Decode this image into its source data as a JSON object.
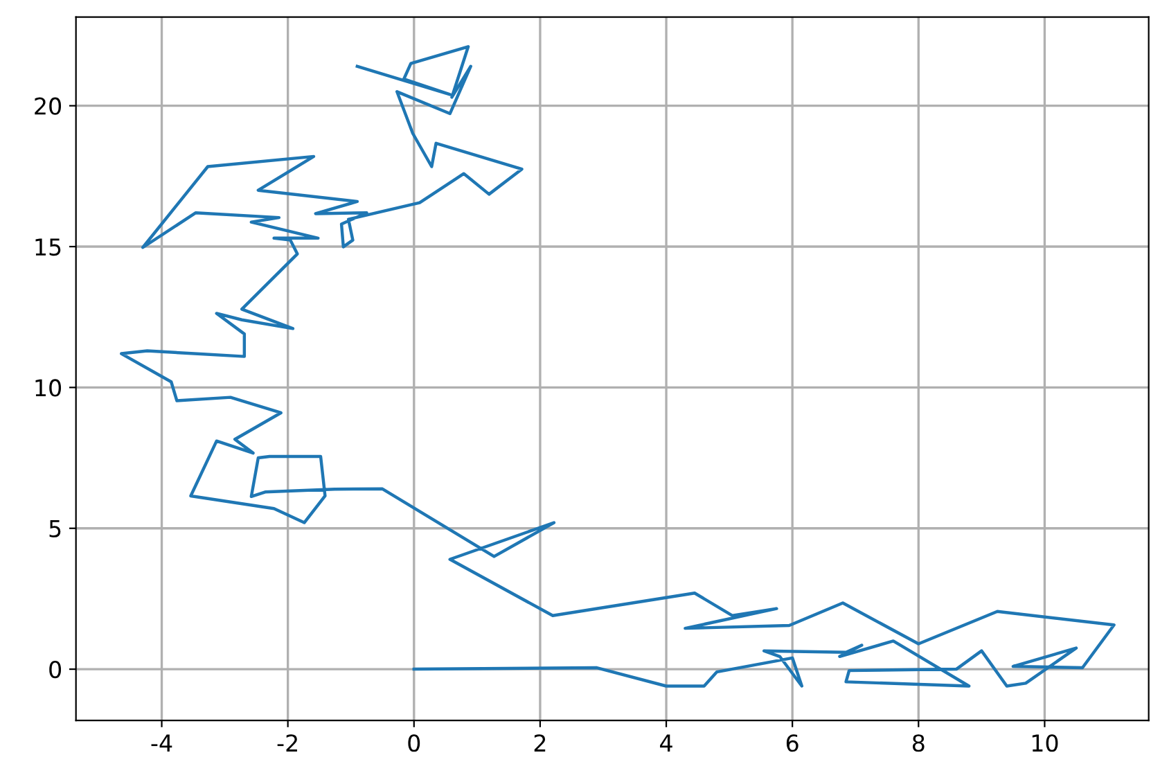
{
  "chart_data": {
    "type": "line",
    "x": [
      0,
      2.9,
      4,
      4.6,
      4.8,
      6.0,
      6.15,
      5.8,
      5.55,
      6.85,
      7.1,
      6.75,
      7.6,
      8.8,
      6.85,
      6.9,
      8.6,
      9.0,
      9.4,
      9.7,
      10.5,
      9.5,
      10.6,
      11.1,
      9.25,
      8.0,
      6.8,
      5.95,
      4.3,
      5.75,
      5.05,
      4.45,
      2.2,
      0.57,
      2.22,
      1.27,
      -0.5,
      -1.26,
      -2.36,
      -2.58,
      -2.47,
      -2.29,
      -1.48,
      -1.41,
      -1.74,
      -2.22,
      -3.54,
      -3.13,
      -2.55,
      -2.84,
      -2.11,
      -2.91,
      -3.76,
      -3.85,
      -4.64,
      -4.23,
      -2.69,
      -2.69,
      -3.13,
      -2.73,
      -1.92,
      -2.73,
      -1.85,
      -1.96,
      -2.22,
      -1.52,
      -2.58,
      -2.14,
      -3.46,
      -4.3,
      -3.27,
      -1.59,
      -2.47,
      -0.9,
      -1.56,
      -0.75,
      -1.15,
      -1.12,
      -0.97,
      -1.04,
      0.09,
      0.79,
      1.19,
      1.71,
      0.35,
      0.28,
      -0.02,
      -0.27,
      0.57,
      0.9,
      0.6,
      0.86,
      -0.05,
      -0.16,
      0.57,
      -0.9
    ],
    "series": [
      {
        "color": "#1f77b4",
        "values": [
          0,
          0.05,
          -0.6,
          -0.6,
          -0.1,
          0.4,
          -0.6,
          0.45,
          0.65,
          0.6,
          0.85,
          0.45,
          1.0,
          -0.6,
          -0.45,
          -0.05,
          0.0,
          0.65,
          -0.6,
          -0.5,
          0.75,
          0.1,
          0.05,
          1.57,
          2.05,
          0.9,
          2.35,
          1.55,
          1.45,
          2.15,
          1.9,
          2.7,
          1.9,
          3.9,
          5.2,
          4.0,
          6.4,
          6.39,
          6.29,
          6.13,
          7.5,
          7.55,
          7.55,
          6.15,
          5.2,
          5.7,
          6.15,
          8.1,
          7.67,
          8.16,
          9.1,
          9.65,
          9.53,
          10.2,
          11.2,
          11.3,
          11.1,
          11.9,
          12.63,
          12.4,
          12.09,
          12.78,
          14.74,
          15.23,
          15.3,
          15.3,
          15.87,
          16.03,
          16.2,
          14.97,
          17.84,
          18.2,
          17.0,
          16.6,
          16.17,
          16.2,
          15.8,
          14.99,
          15.23,
          15.97,
          16.56,
          17.59,
          16.86,
          17.75,
          18.67,
          17.84,
          19.02,
          20.5,
          19.72,
          21.4,
          20.3,
          22.1,
          21.5,
          20.95,
          20.4,
          21.4
        ]
      }
    ],
    "xlim": [
      -5.36,
      11.65
    ],
    "ylim": [
      -1.82,
      23.15
    ],
    "xticks": [
      -4,
      -2,
      0,
      2,
      4,
      6,
      8,
      10
    ],
    "yticks": [
      0,
      5,
      10,
      15,
      20
    ],
    "grid": true
  }
}
